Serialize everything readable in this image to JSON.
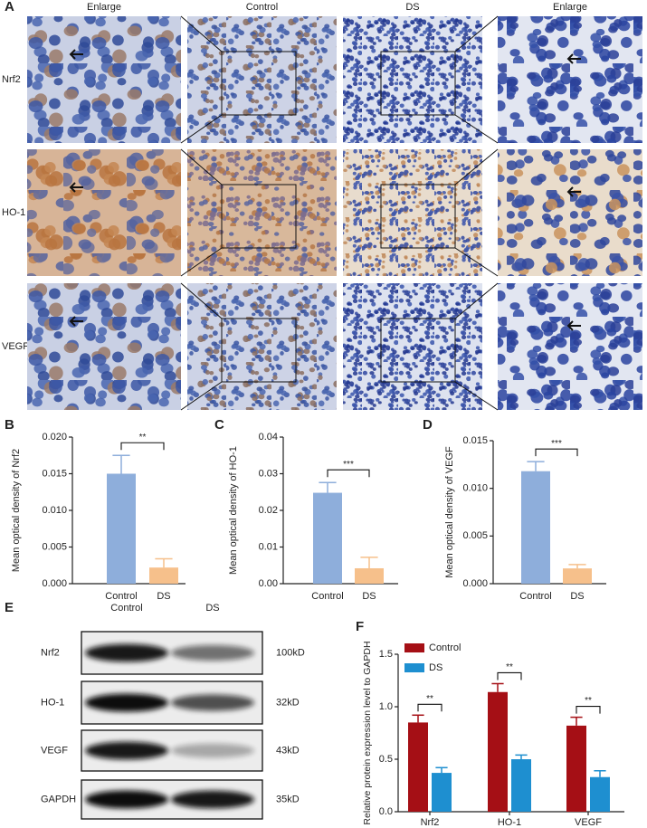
{
  "panel_labels": [
    "A",
    "B",
    "C",
    "D",
    "E",
    "F"
  ],
  "micrographs": {
    "columns": [
      "Enlarge",
      "Control",
      "DS",
      "Enlarge"
    ],
    "rows": [
      "Nrf2",
      "HO-1",
      "VEGF"
    ]
  },
  "blot": {
    "columns": [
      "Control",
      "DS"
    ],
    "rows": [
      "Nrf2",
      "HO-1",
      "VEGF",
      "GAPDH"
    ],
    "sizes": [
      "100kD",
      "32kD",
      "43kD",
      "35kD"
    ]
  },
  "chart_data": [
    {
      "type": "bar",
      "y_label": "Mean optical density of Nrf2",
      "categories": [
        "Control",
        "DS"
      ],
      "values": [
        0.015,
        0.0022
      ],
      "errors": [
        0.0025,
        0.0012
      ],
      "colors": [
        "#8eaedb",
        "#f6c08b"
      ],
      "ylim": [
        0,
        0.02
      ],
      "yticks": [
        {
          "value": 0,
          "label": "0.000"
        },
        0.005,
        {
          "value": 0.01,
          "label": "0.010"
        },
        0.015,
        {
          "value": 0.02,
          "label": "0.020"
        }
      ],
      "significance": "**"
    },
    {
      "type": "bar",
      "y_label": "Mean optical density of HO-1",
      "categories": [
        "Control",
        "DS"
      ],
      "values": [
        0.0248,
        0.0042
      ],
      "errors": [
        0.0028,
        0.003
      ],
      "colors": [
        "#8eaedb",
        "#f6c08b"
      ],
      "ylim": [
        0,
        0.04
      ],
      "yticks": [
        {
          "value": 0,
          "label": "0.00"
        },
        0.01,
        0.02,
        0.03,
        0.04
      ],
      "significance": "***"
    },
    {
      "type": "bar",
      "y_label": "Mean optical density of VEGF",
      "categories": [
        "Control",
        "DS"
      ],
      "values": [
        0.0118,
        0.0016
      ],
      "errors": [
        0.001,
        0.0004
      ],
      "colors": [
        "#8eaedb",
        "#f6c08b"
      ],
      "ylim": [
        0,
        0.015
      ],
      "yticks": [
        {
          "value": 0,
          "label": "0.000"
        },
        0.005,
        {
          "value": 0.01,
          "label": "0.010"
        },
        0.015
      ],
      "significance": "***"
    },
    {
      "type": "grouped_bar",
      "y_label": "Relative protein expression level to GAPDH",
      "categories": [
        "Nrf2",
        "HO-1",
        "VEGF"
      ],
      "series": [
        {
          "name": "Control",
          "color": "#a50f15",
          "values": [
            0.85,
            1.14,
            0.82
          ],
          "errors": [
            0.07,
            0.08,
            0.08
          ]
        },
        {
          "name": "DS",
          "color": "#1e8fd0",
          "values": [
            0.37,
            0.5,
            0.33
          ],
          "errors": [
            0.05,
            0.04,
            0.06
          ]
        }
      ],
      "ylim": [
        0,
        1.5
      ],
      "yticks": [
        {
          "value": 0,
          "label": "0.0"
        },
        0.5,
        {
          "value": 1,
          "label": "1.0"
        },
        1.5
      ],
      "significance": [
        "**",
        "**",
        "**"
      ]
    }
  ]
}
